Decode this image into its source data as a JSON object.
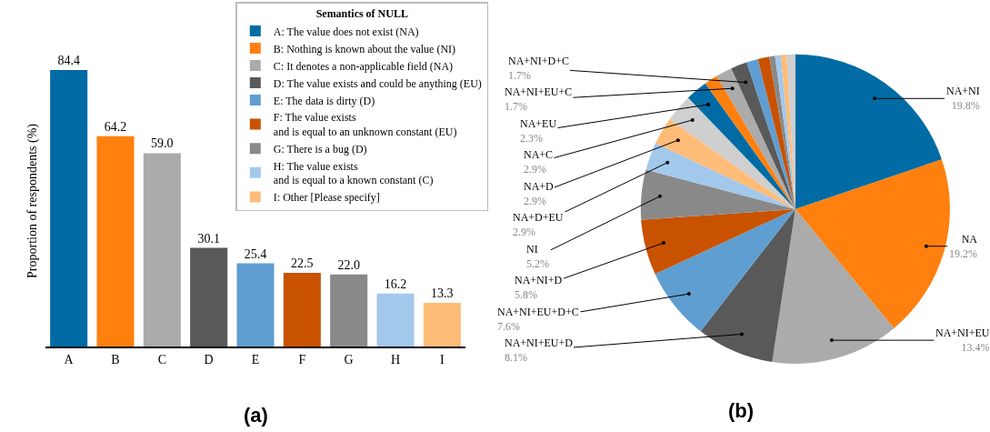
{
  "chart_data": [
    {
      "type": "bar",
      "ylabel": "Proportion of respondents (%)",
      "legend_title": "Semantics of NULL",
      "legend": "top right",
      "tick_labels": "x",
      "annotations": [
        "(a)"
      ],
      "categories": [
        "A",
        "B",
        "C",
        "D",
        "E",
        "F",
        "G",
        "H",
        "I"
      ],
      "series": [
        {
          "name": "A: The value does not exist (NA)",
          "color": "#006ba4",
          "values": [
            84.4,
            null,
            null,
            null,
            null,
            null,
            null,
            null,
            null
          ],
          "value_labels": [
            "84.4",
            null,
            null,
            null,
            null,
            null,
            null,
            null,
            null
          ]
        },
        {
          "name": "B: Nothing is known about the value (NI)",
          "color": "#ff800e",
          "values": [
            null,
            64.2,
            null,
            null,
            null,
            null,
            null,
            null,
            null
          ],
          "value_labels": [
            null,
            "64.2",
            null,
            null,
            null,
            null,
            null,
            null,
            null
          ]
        },
        {
          "name": "C: It denotes a non-applicable field (NA)",
          "color": "#ababab",
          "values": [
            null,
            null,
            59.0,
            null,
            null,
            null,
            null,
            null,
            null
          ],
          "value_labels": [
            null,
            null,
            "59.0",
            null,
            null,
            null,
            null,
            null,
            null
          ]
        },
        {
          "name": "D: The value exists and could be anything (EU)",
          "color": "#595959",
          "values": [
            null,
            null,
            null,
            30.1,
            null,
            null,
            null,
            null,
            null
          ],
          "value_labels": [
            null,
            null,
            null,
            "30.1",
            null,
            null,
            null,
            null,
            null
          ]
        },
        {
          "name": "E: The data is dirty (D)",
          "color": "#5f9ed1",
          "values": [
            null,
            null,
            null,
            null,
            25.4,
            null,
            null,
            null,
            null
          ],
          "value_labels": [
            null,
            null,
            null,
            null,
            "25.4",
            null,
            null,
            null,
            null
          ]
        },
        {
          "name": "F: The value exists\nand is equal to an unknown constant (EU)",
          "color": "#c85200",
          "values": [
            null,
            null,
            null,
            null,
            null,
            22.5,
            null,
            null,
            null
          ],
          "value_labels": [
            null,
            null,
            null,
            null,
            null,
            "22.5",
            null,
            null,
            null
          ]
        },
        {
          "name": "G: There is a bug (D)",
          "color": "#898989",
          "values": [
            null,
            null,
            null,
            null,
            null,
            null,
            22.0,
            null,
            null
          ],
          "value_labels": [
            null,
            null,
            null,
            null,
            null,
            null,
            "22.0",
            null,
            null
          ]
        },
        {
          "name": "H: The value exists\nand is equal to a known constant (C)",
          "color": "#a2c8ec",
          "values": [
            null,
            null,
            null,
            null,
            null,
            null,
            null,
            16.2,
            null
          ],
          "value_labels": [
            null,
            null,
            null,
            null,
            null,
            null,
            null,
            "16.2",
            null
          ]
        },
        {
          "name": "I: Other [Please specify]",
          "color": "#ffbc79",
          "values": [
            null,
            null,
            null,
            null,
            null,
            null,
            null,
            null,
            13.3
          ],
          "value_labels": [
            null,
            null,
            null,
            null,
            null,
            null,
            null,
            null,
            "13.3"
          ]
        }
      ]
    },
    {
      "type": "pie",
      "annotations": [
        "(b)"
      ],
      "categories": [
        "NA+NI",
        "NA",
        "NA+NI+EU",
        "NA+NI+EU+D",
        "NA+NI+EU+D+C",
        "NA+NI+D",
        "NI",
        "NA+D+EU",
        "NA+D",
        "NA+C",
        "NA+EU",
        null,
        "NA+NI+EU+C",
        "NA+NI+D+C",
        null,
        null,
        null,
        null,
        null,
        null
      ],
      "values": [
        19.8,
        19.2,
        13.4,
        8.1,
        7.6,
        5.8,
        5.2,
        2.9,
        2.9,
        2.9,
        2.3,
        1.4,
        1.7,
        1.7,
        1.2,
        1.2,
        0.6,
        0.6,
        0.6,
        0.9
      ],
      "value_labels": [
        "19.8%",
        "19.2%",
        "13.4%",
        "8.1%",
        "7.6%",
        "5.8%",
        "5.2%",
        "2.9%",
        "2.9%",
        "2.9%",
        "2.3%",
        null,
        "1.7%",
        "1.7%",
        null,
        null,
        null,
        null,
        null,
        null
      ],
      "colors": [
        "#006ba4",
        "#ff800e",
        "#ababab",
        "#595959",
        "#5f9ed1",
        "#c85200",
        "#898989",
        "#a2c8ec",
        "#ffbc79",
        "#cfcfcf",
        "#006ba4",
        "#ff800e",
        "#ababab",
        "#595959",
        "#5f9ed1",
        "#c85200",
        "#898989",
        "#a2c8ec",
        "#ffbc79",
        "#cfcfcf"
      ]
    }
  ]
}
